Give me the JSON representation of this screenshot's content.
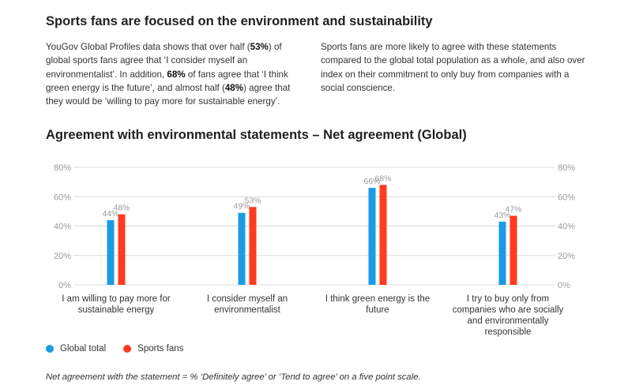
{
  "heading": "Sports fans are focused on the environment and sustainability",
  "intro_left": {
    "t1": "YouGov Global Profiles data shows that over half (",
    "b1": "53%",
    "t2": ") of global sports fans agree that ‘I consider myself an environmentalist’. In addition, ",
    "b2": "68%",
    "t3": " of fans agree that ‘I think green energy is the future’, and almost half (",
    "b3": "48%",
    "t4": ") agree that they would be ‘willing to pay more for sustainable energy’."
  },
  "intro_right": "Sports fans are more likely to agree with these statements compared to the global total population as a whole, and also over index on their commitment to only buy from companies with a social conscience.",
  "chart_heading": "Agreement with environmental statements – Net agreement (Global)",
  "chart_data": {
    "type": "bar",
    "categories": [
      "I am willing to pay more for sustainable energy",
      "I consider myself an environmentalist",
      "I think green energy is the future",
      "I try to buy only from companies who are socially and environmentally responsible"
    ],
    "series": [
      {
        "name": "Global total",
        "values": [
          44,
          49,
          66,
          43
        ],
        "labels": [
          "44%",
          "49%",
          "66%",
          "43%"
        ],
        "color": "#1a9be6"
      },
      {
        "name": "Sports fans",
        "values": [
          48,
          53,
          68,
          47
        ],
        "labels": [
          "48%",
          "53%",
          "68%",
          "47%"
        ],
        "color": "#ff3b22"
      }
    ],
    "ylim": [
      0,
      80
    ],
    "yticks": [
      0,
      20,
      40,
      60,
      80
    ],
    "yticklabels": [
      "0%",
      "20%",
      "40%",
      "60%",
      "80%"
    ],
    "ytick_sides": [
      "left",
      "right"
    ],
    "grid": true,
    "legend_position": "bottom-left"
  },
  "footnote": "Net agreement with the statement = % ‘Definitely agree’ or ‘Tend to agree’ on a five point scale."
}
